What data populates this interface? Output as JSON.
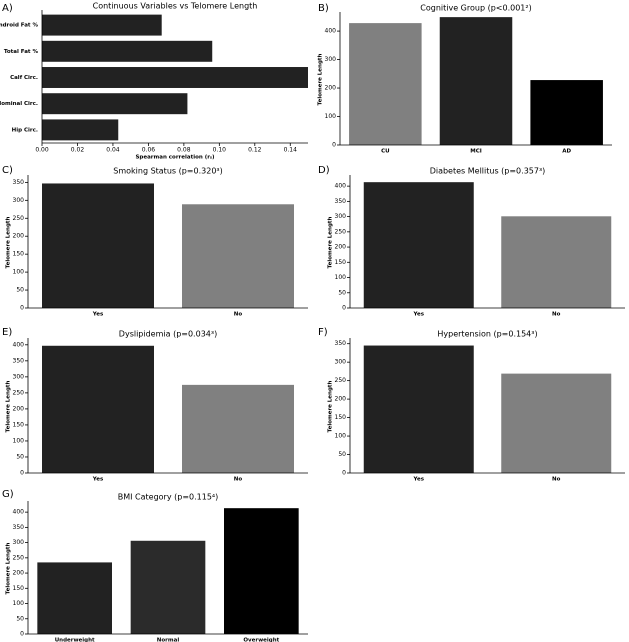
{
  "chart_data": [
    {
      "type": "hbar",
      "panel": "A)",
      "title": "Continuous Variables vs Telomere Length",
      "x_label": "Spearman correlation (rₛ)",
      "categories": [
        "Android Fat %",
        "Total Fat %",
        "Calf Circ.",
        "Abdominal Circ.",
        "Hip Circ."
      ],
      "values": [
        0.0675,
        0.096,
        0.15,
        0.082,
        0.043
      ],
      "color": "#222222",
      "xlim": [
        0,
        0.15
      ],
      "xticks": [
        {
          "value": 0,
          "label": "0.00"
        },
        {
          "value": 0.02,
          "label": "0.02"
        },
        {
          "value": 0.04,
          "label": "0.04"
        },
        {
          "value": 0.06,
          "label": "0.06"
        },
        {
          "value": 0.08,
          "label": "0.08"
        },
        {
          "value": 0.1,
          "label": "0.10"
        },
        {
          "value": 0.12,
          "label": "0.12"
        },
        {
          "value": 0.14,
          "label": "0.14"
        }
      ]
    },
    {
      "type": "bar",
      "panel": "B)",
      "title": "Cognitive Group (p<0.001²)",
      "y_label": "Telomere Length",
      "categories": [
        "CU",
        "MCI",
        "AD"
      ],
      "values": [
        428,
        449,
        228
      ],
      "colors": [
        "#808080",
        "#222222",
        "#000000"
      ],
      "ylim": [
        0,
        460
      ],
      "yticks": [
        0,
        100,
        200,
        300,
        400
      ]
    },
    {
      "type": "bar",
      "panel": "C)",
      "title": "Smoking Status (p=0.320³)",
      "y_label": "Telomere Length",
      "categories": [
        "Yes",
        "No"
      ],
      "values": [
        347,
        289
      ],
      "colors": [
        "#222222",
        "#808080"
      ],
      "ylim": [
        0,
        365
      ],
      "yticks": [
        0,
        50,
        100,
        150,
        200,
        250,
        300,
        350
      ]
    },
    {
      "type": "bar",
      "panel": "D)",
      "title": "Diabetes Mellitus (p=0.357³)",
      "y_label": "Telomere Length",
      "categories": [
        "Yes",
        "No"
      ],
      "values": [
        413,
        301
      ],
      "colors": [
        "#222222",
        "#808080"
      ],
      "ylim": [
        0,
        430
      ],
      "yticks": [
        0,
        50,
        100,
        150,
        200,
        250,
        300,
        350,
        400
      ]
    },
    {
      "type": "bar",
      "panel": "E)",
      "title": "Dyslipidemia (p=0.034³)",
      "y_label": "Telomere Length",
      "categories": [
        "Yes",
        "No"
      ],
      "values": [
        397,
        275
      ],
      "colors": [
        "#222222",
        "#808080"
      ],
      "ylim": [
        0,
        415
      ],
      "yticks": [
        0,
        50,
        100,
        150,
        200,
        250,
        300,
        350,
        400
      ]
    },
    {
      "type": "bar",
      "panel": "F)",
      "title": "Hypertension (p=0.154³)",
      "y_label": "Telomere Length",
      "categories": [
        "Yes",
        "No"
      ],
      "values": [
        345,
        269
      ],
      "colors": [
        "#222222",
        "#808080"
      ],
      "ylim": [
        0,
        360
      ],
      "yticks": [
        0,
        50,
        100,
        150,
        200,
        250,
        300,
        350
      ]
    },
    {
      "type": "bar",
      "panel": "G)",
      "title": "BMI Category (p=0.115⁴)",
      "y_label": "Telomere Length",
      "categories": [
        "Underweight",
        "Normal",
        "Overweight"
      ],
      "values": [
        235,
        306,
        413
      ],
      "colors": [
        "#222222",
        "#2b2b2b",
        "#000000"
      ],
      "ylim": [
        0,
        430
      ],
      "yticks": [
        0,
        50,
        100,
        150,
        200,
        250,
        300,
        350,
        400
      ]
    }
  ]
}
